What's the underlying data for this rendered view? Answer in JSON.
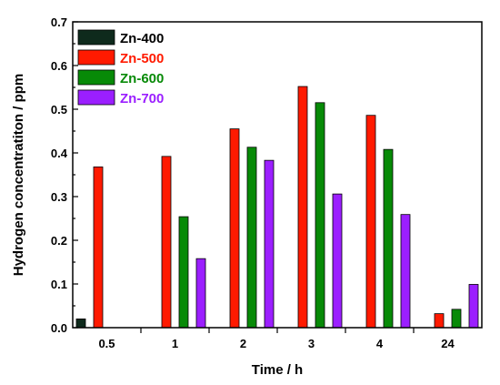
{
  "chart_data": {
    "type": "bar",
    "title": "",
    "xlabel": "Time / h",
    "ylabel": "Hydrogen concentratiton / ppm",
    "categories": [
      "0.5",
      "1",
      "2",
      "3",
      "4",
      "24"
    ],
    "ylim": [
      0,
      0.7
    ],
    "yticks": [
      "0.0",
      "0.1",
      "0.2",
      "0.3",
      "0.4",
      "0.5",
      "0.6",
      "0.7"
    ],
    "grid": false,
    "legend_position": "top-left",
    "series": [
      {
        "name": "Zn-400",
        "color": "#000000",
        "label_color": "#000000",
        "fill": "#0e2a1c",
        "values": [
          0.02,
          null,
          null,
          null,
          null,
          null
        ]
      },
      {
        "name": "Zn-500",
        "color": "#ff1a00",
        "label_color": "#ff1a00",
        "fill": "#ff1a00",
        "values": [
          0.368,
          0.392,
          0.455,
          0.552,
          0.486,
          0.032
        ]
      },
      {
        "name": "Zn-600",
        "color": "#078a07",
        "label_color": "#078a07",
        "fill": "#078a07",
        "values": [
          null,
          0.254,
          0.413,
          0.515,
          0.408,
          0.042
        ]
      },
      {
        "name": "Zn-700",
        "color": "#9b1fff",
        "label_color": "#9b1fff",
        "fill": "#9b1fff",
        "values": [
          null,
          0.158,
          0.383,
          0.306,
          0.259,
          0.099
        ]
      }
    ]
  }
}
